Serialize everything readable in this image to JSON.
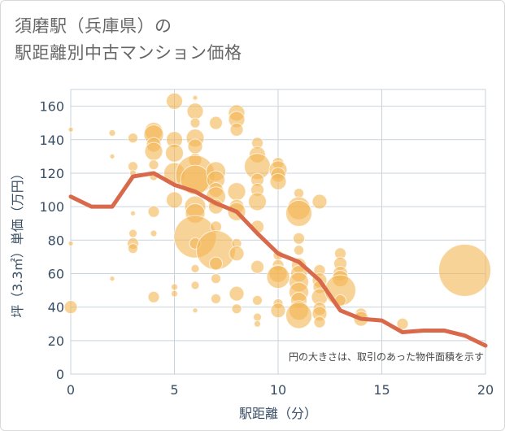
{
  "title_line1": "須磨駅（兵庫県）の",
  "title_line2": "駅距離別中古マンション価格",
  "chart_data": {
    "type": "scatter",
    "xlabel": "駅距離（分）",
    "ylabel": "坪（3.3㎡）単価（万円）",
    "xlim": [
      0,
      20
    ],
    "ylim": [
      0,
      170
    ],
    "x_ticks": [
      "0",
      "5",
      "10",
      "15",
      "20"
    ],
    "y_ticks": [
      "0",
      "20",
      "40",
      "60",
      "80",
      "100",
      "120",
      "140",
      "160"
    ],
    "grid": true,
    "annotation": "円の大きさは、取引のあった物件面積を示す",
    "bubble_color": "#f4b654",
    "line_color": "#d9694b",
    "bubbles": [
      {
        "x": 0,
        "y": 146,
        "r": 3
      },
      {
        "x": 0,
        "y": 78,
        "r": 3
      },
      {
        "x": 0,
        "y": 40,
        "r": 8
      },
      {
        "x": 2,
        "y": 144,
        "r": 4
      },
      {
        "x": 2,
        "y": 130,
        "r": 3
      },
      {
        "x": 2,
        "y": 57,
        "r": 3
      },
      {
        "x": 3,
        "y": 141,
        "r": 6
      },
      {
        "x": 3,
        "y": 124,
        "r": 6
      },
      {
        "x": 3,
        "y": 120,
        "r": 4
      },
      {
        "x": 3,
        "y": 96,
        "r": 3
      },
      {
        "x": 3,
        "y": 84,
        "r": 5
      },
      {
        "x": 3,
        "y": 78,
        "r": 7
      },
      {
        "x": 3,
        "y": 75,
        "r": 6
      },
      {
        "x": 4,
        "y": 145,
        "r": 11
      },
      {
        "x": 4,
        "y": 143,
        "r": 12
      },
      {
        "x": 4,
        "y": 137,
        "r": 9
      },
      {
        "x": 4,
        "y": 133,
        "r": 11
      },
      {
        "x": 4,
        "y": 125,
        "r": 6
      },
      {
        "x": 4,
        "y": 118,
        "r": 5
      },
      {
        "x": 4,
        "y": 97,
        "r": 7
      },
      {
        "x": 4,
        "y": 84,
        "r": 4
      },
      {
        "x": 4,
        "y": 46,
        "r": 7
      },
      {
        "x": 5,
        "y": 163,
        "r": 10
      },
      {
        "x": 5,
        "y": 140,
        "r": 10
      },
      {
        "x": 5,
        "y": 132,
        "r": 11
      },
      {
        "x": 5,
        "y": 120,
        "r": 13
      },
      {
        "x": 5,
        "y": 104,
        "r": 10
      },
      {
        "x": 5,
        "y": 52,
        "r": 4
      },
      {
        "x": 5,
        "y": 48,
        "r": 4
      },
      {
        "x": 6,
        "y": 165,
        "r": 3
      },
      {
        "x": 6,
        "y": 157,
        "r": 10
      },
      {
        "x": 6,
        "y": 150,
        "r": 6
      },
      {
        "x": 6,
        "y": 141,
        "r": 11
      },
      {
        "x": 6,
        "y": 136,
        "r": 9
      },
      {
        "x": 6,
        "y": 128,
        "r": 8
      },
      {
        "x": 6,
        "y": 119,
        "r": 24
      },
      {
        "x": 6,
        "y": 116,
        "r": 18
      },
      {
        "x": 6,
        "y": 100,
        "r": 13
      },
      {
        "x": 6,
        "y": 96,
        "r": 12
      },
      {
        "x": 6,
        "y": 82,
        "r": 26
      },
      {
        "x": 6,
        "y": 78,
        "r": 7
      },
      {
        "x": 6,
        "y": 63,
        "r": 5
      },
      {
        "x": 6,
        "y": 53,
        "r": 5
      },
      {
        "x": 6,
        "y": 38,
        "r": 3
      },
      {
        "x": 7,
        "y": 150,
        "r": 8
      },
      {
        "x": 7,
        "y": 121,
        "r": 12
      },
      {
        "x": 7,
        "y": 116,
        "r": 11
      },
      {
        "x": 7,
        "y": 110,
        "r": 9
      },
      {
        "x": 7,
        "y": 106,
        "r": 12
      },
      {
        "x": 7,
        "y": 100,
        "r": 9
      },
      {
        "x": 7,
        "y": 88,
        "r": 7
      },
      {
        "x": 7,
        "y": 74,
        "r": 24
      },
      {
        "x": 7,
        "y": 66,
        "r": 8
      },
      {
        "x": 7,
        "y": 57,
        "r": 6
      },
      {
        "x": 7,
        "y": 45,
        "r": 6
      },
      {
        "x": 8,
        "y": 156,
        "r": 10
      },
      {
        "x": 8,
        "y": 152,
        "r": 10
      },
      {
        "x": 8,
        "y": 146,
        "r": 8
      },
      {
        "x": 8,
        "y": 109,
        "r": 11
      },
      {
        "x": 8,
        "y": 100,
        "r": 9
      },
      {
        "x": 8,
        "y": 97,
        "r": 11
      },
      {
        "x": 8,
        "y": 78,
        "r": 6
      },
      {
        "x": 8,
        "y": 72,
        "r": 9
      },
      {
        "x": 8,
        "y": 48,
        "r": 9
      },
      {
        "x": 8,
        "y": 39,
        "r": 6
      },
      {
        "x": 9,
        "y": 138,
        "r": 7
      },
      {
        "x": 9,
        "y": 131,
        "r": 10
      },
      {
        "x": 9,
        "y": 124,
        "r": 16
      },
      {
        "x": 9,
        "y": 116,
        "r": 8
      },
      {
        "x": 9,
        "y": 110,
        "r": 8
      },
      {
        "x": 9,
        "y": 103,
        "r": 11
      },
      {
        "x": 9,
        "y": 88,
        "r": 8
      },
      {
        "x": 9,
        "y": 64,
        "r": 8
      },
      {
        "x": 9,
        "y": 44,
        "r": 6
      },
      {
        "x": 9,
        "y": 34,
        "r": 5
      },
      {
        "x": 9,
        "y": 30,
        "r": 4
      },
      {
        "x": 10,
        "y": 126,
        "r": 7
      },
      {
        "x": 10,
        "y": 122,
        "r": 11
      },
      {
        "x": 10,
        "y": 119,
        "r": 9
      },
      {
        "x": 10,
        "y": 115,
        "r": 10
      },
      {
        "x": 10,
        "y": 71,
        "r": 6
      },
      {
        "x": 10,
        "y": 65,
        "r": 7
      },
      {
        "x": 10,
        "y": 60,
        "r": 11
      },
      {
        "x": 10,
        "y": 58,
        "r": 14
      },
      {
        "x": 10,
        "y": 42,
        "r": 6
      },
      {
        "x": 10,
        "y": 38,
        "r": 9
      },
      {
        "x": 11,
        "y": 108,
        "r": 6
      },
      {
        "x": 11,
        "y": 99,
        "r": 14
      },
      {
        "x": 11,
        "y": 96,
        "r": 16
      },
      {
        "x": 11,
        "y": 81,
        "r": 7
      },
      {
        "x": 11,
        "y": 74,
        "r": 6
      },
      {
        "x": 11,
        "y": 65,
        "r": 9
      },
      {
        "x": 11,
        "y": 60,
        "r": 10
      },
      {
        "x": 11,
        "y": 55,
        "r": 12
      },
      {
        "x": 11,
        "y": 49,
        "r": 12
      },
      {
        "x": 11,
        "y": 44,
        "r": 10
      },
      {
        "x": 11,
        "y": 38,
        "r": 12
      },
      {
        "x": 11,
        "y": 35,
        "r": 16
      },
      {
        "x": 12,
        "y": 103,
        "r": 9
      },
      {
        "x": 12,
        "y": 62,
        "r": 7
      },
      {
        "x": 12,
        "y": 56,
        "r": 9
      },
      {
        "x": 12,
        "y": 52,
        "r": 8
      },
      {
        "x": 12,
        "y": 46,
        "r": 10
      },
      {
        "x": 12,
        "y": 39,
        "r": 8
      },
      {
        "x": 12,
        "y": 36,
        "r": 9
      },
      {
        "x": 12,
        "y": 31,
        "r": 7
      },
      {
        "x": 13,
        "y": 72,
        "r": 7
      },
      {
        "x": 13,
        "y": 66,
        "r": 8
      },
      {
        "x": 13,
        "y": 60,
        "r": 9
      },
      {
        "x": 13,
        "y": 57,
        "r": 10
      },
      {
        "x": 13,
        "y": 50,
        "r": 19
      },
      {
        "x": 13,
        "y": 44,
        "r": 7
      },
      {
        "x": 14,
        "y": 36,
        "r": 7
      },
      {
        "x": 14,
        "y": 33,
        "r": 9
      },
      {
        "x": 16,
        "y": 30,
        "r": 7
      },
      {
        "x": 19,
        "y": 62,
        "r": 32
      }
    ],
    "line": {
      "x": [
        0,
        1,
        2,
        3,
        4,
        5,
        6,
        7,
        8,
        9,
        10,
        11,
        12,
        13,
        14,
        15,
        16,
        17,
        18,
        19,
        20
      ],
      "y": [
        106,
        100,
        100,
        118,
        120,
        113,
        109,
        102,
        97,
        84,
        72,
        67,
        56,
        38,
        33,
        32,
        25,
        26,
        26,
        23,
        17
      ]
    }
  }
}
